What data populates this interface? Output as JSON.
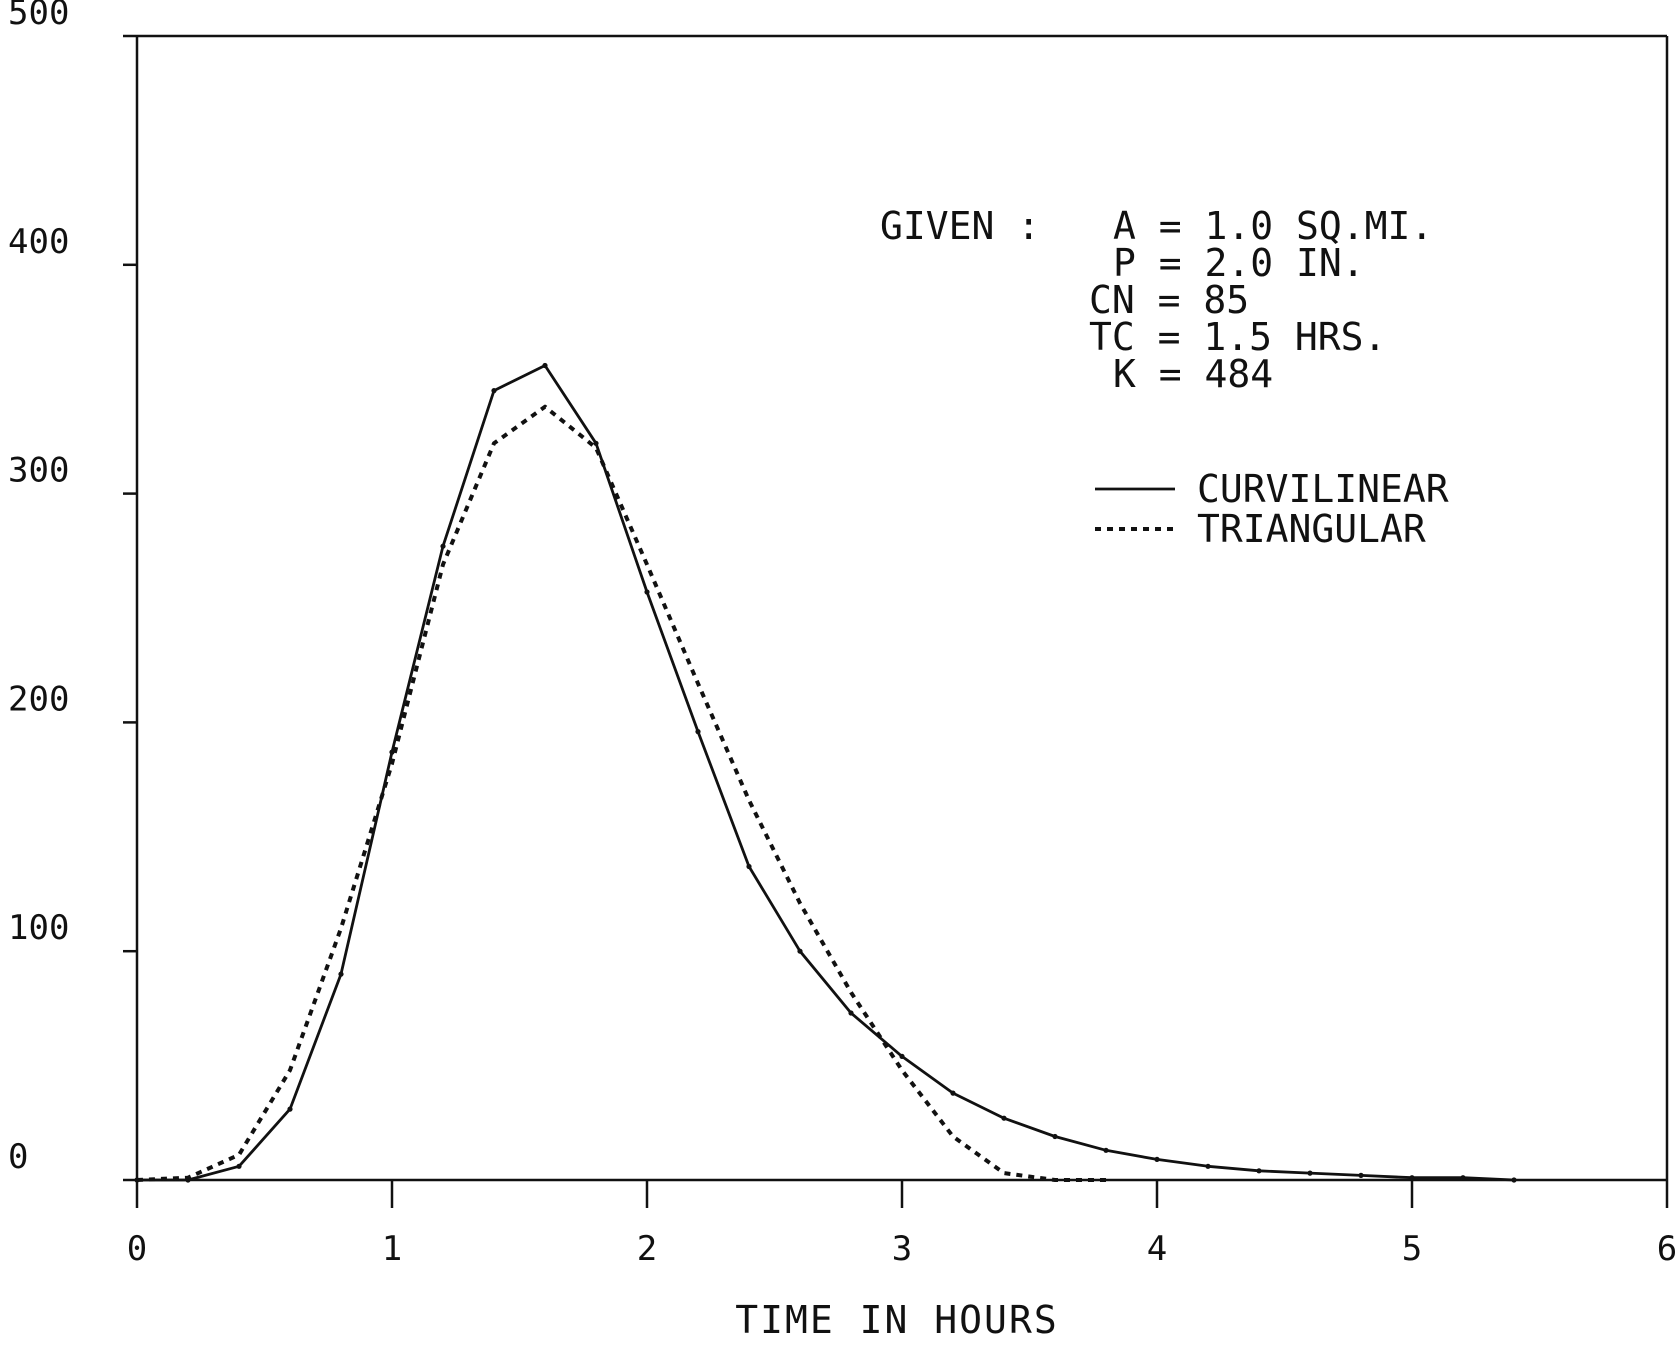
{
  "chart_data": {
    "type": "line",
    "xlabel": "TIME IN HOURS",
    "ylabel": "",
    "xlim": [
      0,
      6
    ],
    "ylim": [
      0,
      500
    ],
    "xticks": [
      0,
      1,
      2,
      3,
      4,
      5,
      6
    ],
    "xtick_labels": [
      "0",
      "1",
      "2",
      "3",
      "4",
      "5",
      "6"
    ],
    "yticks": [
      0,
      100,
      200,
      300,
      400,
      500
    ],
    "ytick_labels": [
      "0",
      "100",
      "200",
      "300",
      "400",
      "500"
    ],
    "grid": false,
    "legend_placement": "upper-right",
    "given": {
      "label": "GIVEN :",
      "lines": [
        "A = 1.0 SQ.MI.",
        "P = 2.0 IN.",
        "CN = 85",
        "TC = 1.5 HRS.",
        "K = 484"
      ]
    },
    "series": [
      {
        "name": "CURVILINEAR",
        "style": "solid",
        "color": "#111111",
        "x": [
          0,
          0.2,
          0.4,
          0.6,
          0.8,
          1.0,
          1.2,
          1.4,
          1.6,
          1.8,
          2.0,
          2.2,
          2.4,
          2.6,
          2.8,
          3.0,
          3.2,
          3.4,
          3.6,
          3.8,
          4.0,
          4.2,
          4.4,
          4.6,
          4.8,
          5.0,
          5.2,
          5.4
        ],
        "values": [
          0,
          0,
          6,
          31,
          90,
          187,
          277,
          345,
          356,
          322,
          257,
          196,
          137,
          100,
          73,
          54,
          38,
          27,
          19,
          13,
          9,
          6,
          4,
          3,
          2,
          1,
          1,
          0
        ]
      },
      {
        "name": "TRIANGULAR",
        "style": "dashed",
        "color": "#111111",
        "x": [
          0,
          0.2,
          0.4,
          0.6,
          0.8,
          1.0,
          1.2,
          1.4,
          1.6,
          1.8,
          2.0,
          2.2,
          2.4,
          2.6,
          2.8,
          3.0,
          3.2,
          3.4,
          3.6,
          3.8
        ],
        "values": [
          0,
          1,
          11,
          48,
          110,
          182,
          269,
          322,
          338,
          320,
          269,
          217,
          166,
          121,
          82,
          48,
          19,
          3,
          0,
          0
        ]
      }
    ]
  }
}
